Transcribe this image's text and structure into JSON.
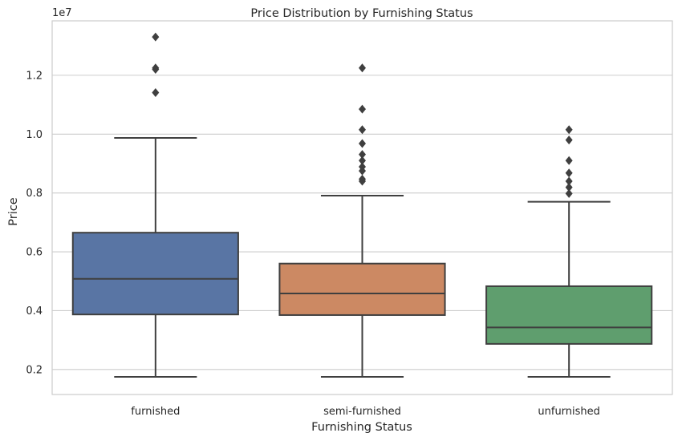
{
  "chart_data": {
    "type": "box",
    "title": "Price Distribution by Furnishing Status",
    "xlabel": "Furnishing Status",
    "ylabel": "Price",
    "y_offset_label": "1e7",
    "y_scale": 10000000,
    "ylim": [
      1150000,
      13850000
    ],
    "yticks": [
      2000000,
      4000000,
      6000000,
      8000000,
      10000000,
      12000000
    ],
    "ytick_labels": [
      "0.2",
      "0.4",
      "0.6",
      "0.8",
      "1.0",
      "1.2"
    ],
    "grid": true,
    "categories": [
      "furnished",
      "semi-furnished",
      "unfurnished"
    ],
    "colors": [
      "#5975a4",
      "#cc8963",
      "#5f9e6e"
    ],
    "boxes": [
      {
        "name": "furnished",
        "whisker_low": 1750000,
        "q1": 3870000,
        "median": 5080000,
        "q3": 6650000,
        "whisker_high": 9870000,
        "outliers": [
          13300000,
          12250000,
          12200000,
          11410000
        ]
      },
      {
        "name": "semi-furnished",
        "whisker_low": 1750000,
        "q1": 3850000,
        "median": 4585000,
        "q3": 5600000,
        "whisker_high": 7910000,
        "outliers": [
          12250000,
          10850000,
          10150000,
          9681000,
          9310000,
          9100000,
          8890000,
          8750000,
          8470000,
          8400000
        ]
      },
      {
        "name": "unfurnished",
        "whisker_low": 1750000,
        "q1": 2870000,
        "median": 3430000,
        "q3": 4830000,
        "whisker_high": 7700000,
        "outliers": [
          10150000,
          9800000,
          9100000,
          8680000,
          8400000,
          8190000,
          7980000
        ]
      }
    ]
  }
}
